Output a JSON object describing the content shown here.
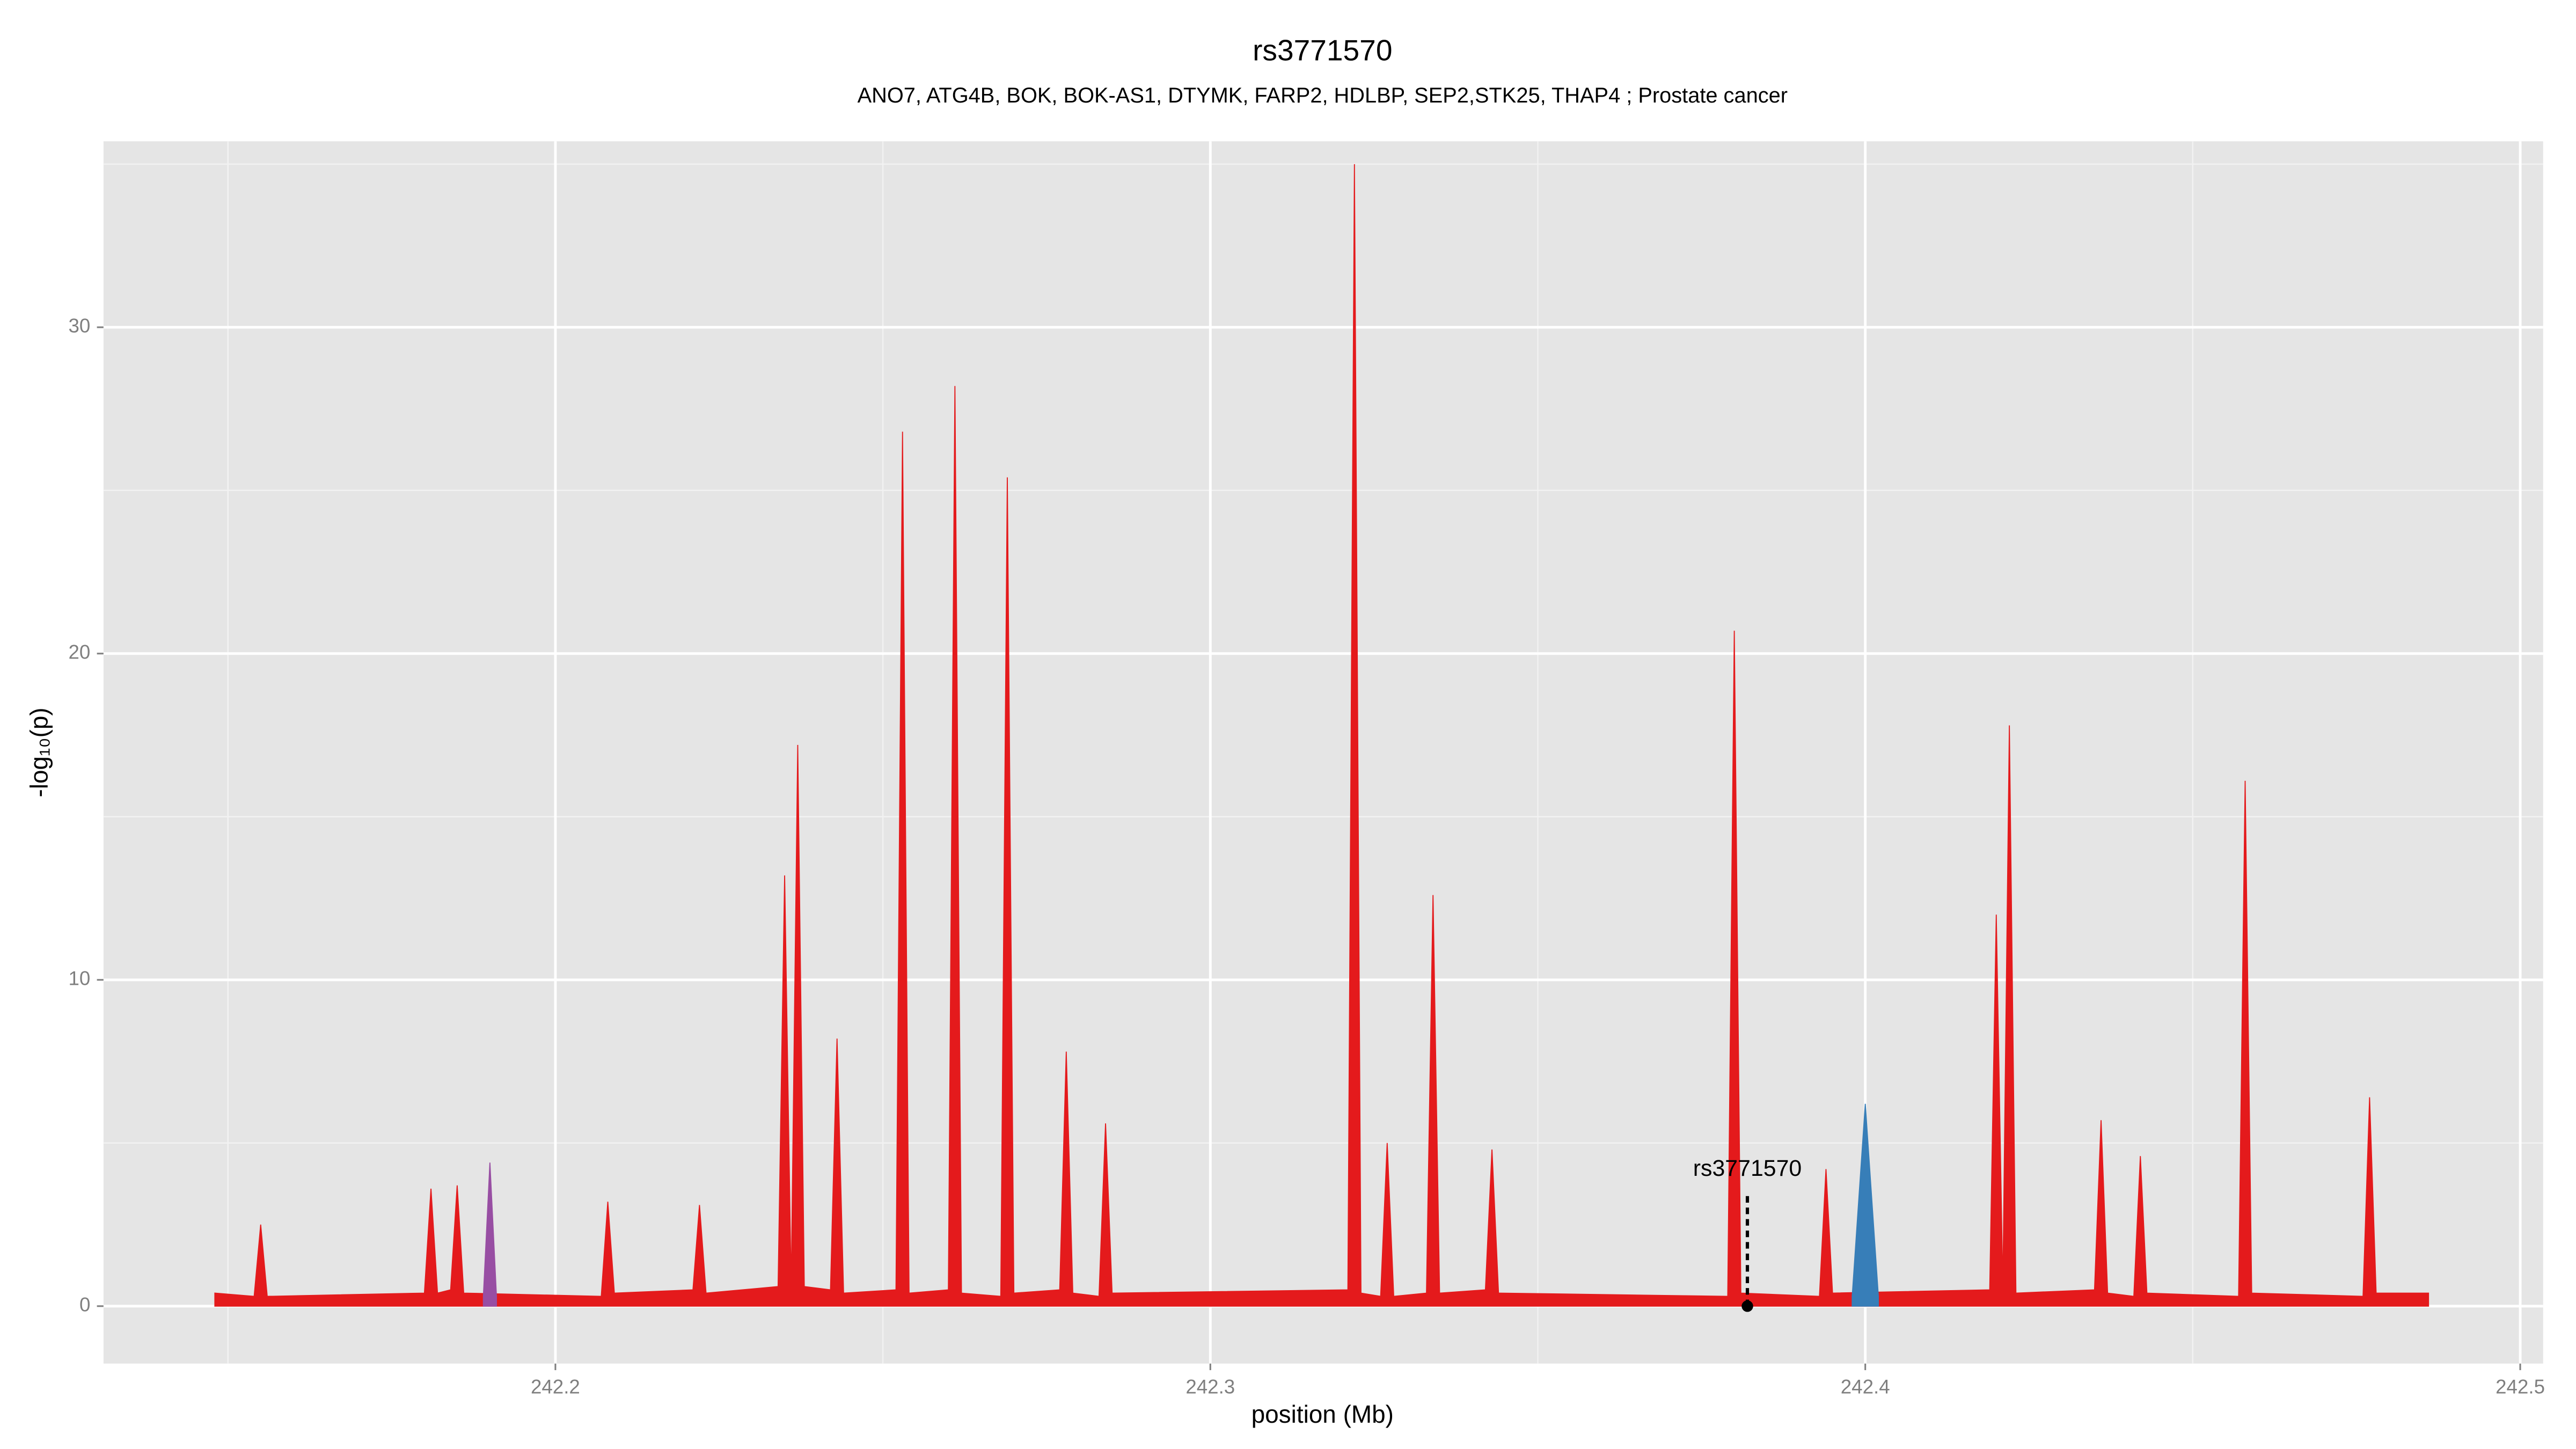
{
  "chart_data": {
    "type": "area",
    "title": "rs3771570",
    "subtitle": "ANO7, ATG4B, BOK, BOK-AS1, DTYMK, FARP2, HDLBP, SEP2,STK25, THAP4 ; Prostate cancer",
    "xlabel": "position (Mb)",
    "ylabel": "-log₁₀(p)",
    "xlim": [
      242.131,
      242.5035
    ],
    "ylim": [
      -1.76,
      35.7
    ],
    "xticks": [
      242.2,
      242.3,
      242.4,
      242.5
    ],
    "yticks": [
      0,
      10,
      20,
      30
    ],
    "xminorticks": [
      242.15,
      242.25,
      242.35,
      242.45
    ],
    "yminorticks": [
      5,
      15,
      25,
      35
    ],
    "grid": true,
    "series": [
      {
        "color": "#e41a1c",
        "x": [
          242.148,
          242.154,
          242.155,
          242.156,
          242.18,
          242.181,
          242.182,
          242.184,
          242.185,
          242.186,
          242.207,
          242.208,
          242.209,
          242.221,
          242.222,
          242.223,
          242.234,
          242.235,
          242.236,
          242.237,
          242.238,
          242.242,
          242.243,
          242.244,
          242.252,
          242.253,
          242.254,
          242.26,
          242.261,
          242.262,
          242.268,
          242.269,
          242.27,
          242.277,
          242.278,
          242.279,
          242.283,
          242.284,
          242.285,
          242.321,
          242.322,
          242.323,
          242.326,
          242.327,
          242.328,
          242.333,
          242.334,
          242.335,
          242.342,
          242.343,
          242.344,
          242.379,
          242.38,
          242.381,
          242.393,
          242.394,
          242.395,
          242.419,
          242.42,
          242.421,
          242.422,
          242.423,
          242.435,
          242.436,
          242.437,
          242.441,
          242.442,
          242.443,
          242.457,
          242.458,
          242.459,
          242.476,
          242.477,
          242.478,
          242.486
        ],
        "values": [
          0.4,
          0.3,
          2.5,
          0.3,
          0.4,
          3.6,
          0.4,
          0.5,
          3.7,
          0.4,
          0.3,
          3.2,
          0.4,
          0.5,
          3.1,
          0.4,
          0.6,
          13.2,
          0.5,
          17.2,
          0.6,
          0.5,
          8.2,
          0.4,
          0.5,
          26.8,
          0.4,
          0.5,
          28.2,
          0.4,
          0.3,
          25.4,
          0.4,
          0.5,
          7.8,
          0.4,
          0.3,
          5.6,
          0.4,
          0.5,
          35,
          0.4,
          0.3,
          5,
          0.3,
          0.4,
          12.6,
          0.4,
          0.5,
          4.8,
          0.4,
          0.3,
          20.7,
          0.4,
          0.3,
          4.2,
          0.4,
          0.5,
          12,
          0.5,
          17.8,
          0.4,
          0.5,
          5.7,
          0.4,
          0.3,
          4.6,
          0.4,
          0.3,
          16.1,
          0.4,
          0.3,
          6.4,
          0.4,
          0.4
        ]
      },
      {
        "color": "#377eb8",
        "x": [
          242.398,
          242.4,
          242.402
        ],
        "values": [
          0.3,
          6.2,
          0.3
        ]
      },
      {
        "color": "#984ea3",
        "x": [
          242.189,
          242.19,
          242.191
        ],
        "values": [
          0.3,
          4.4,
          0.3
        ]
      }
    ],
    "annotation": {
      "text": "rs3771570",
      "x": 242.382,
      "y": 0
    }
  }
}
